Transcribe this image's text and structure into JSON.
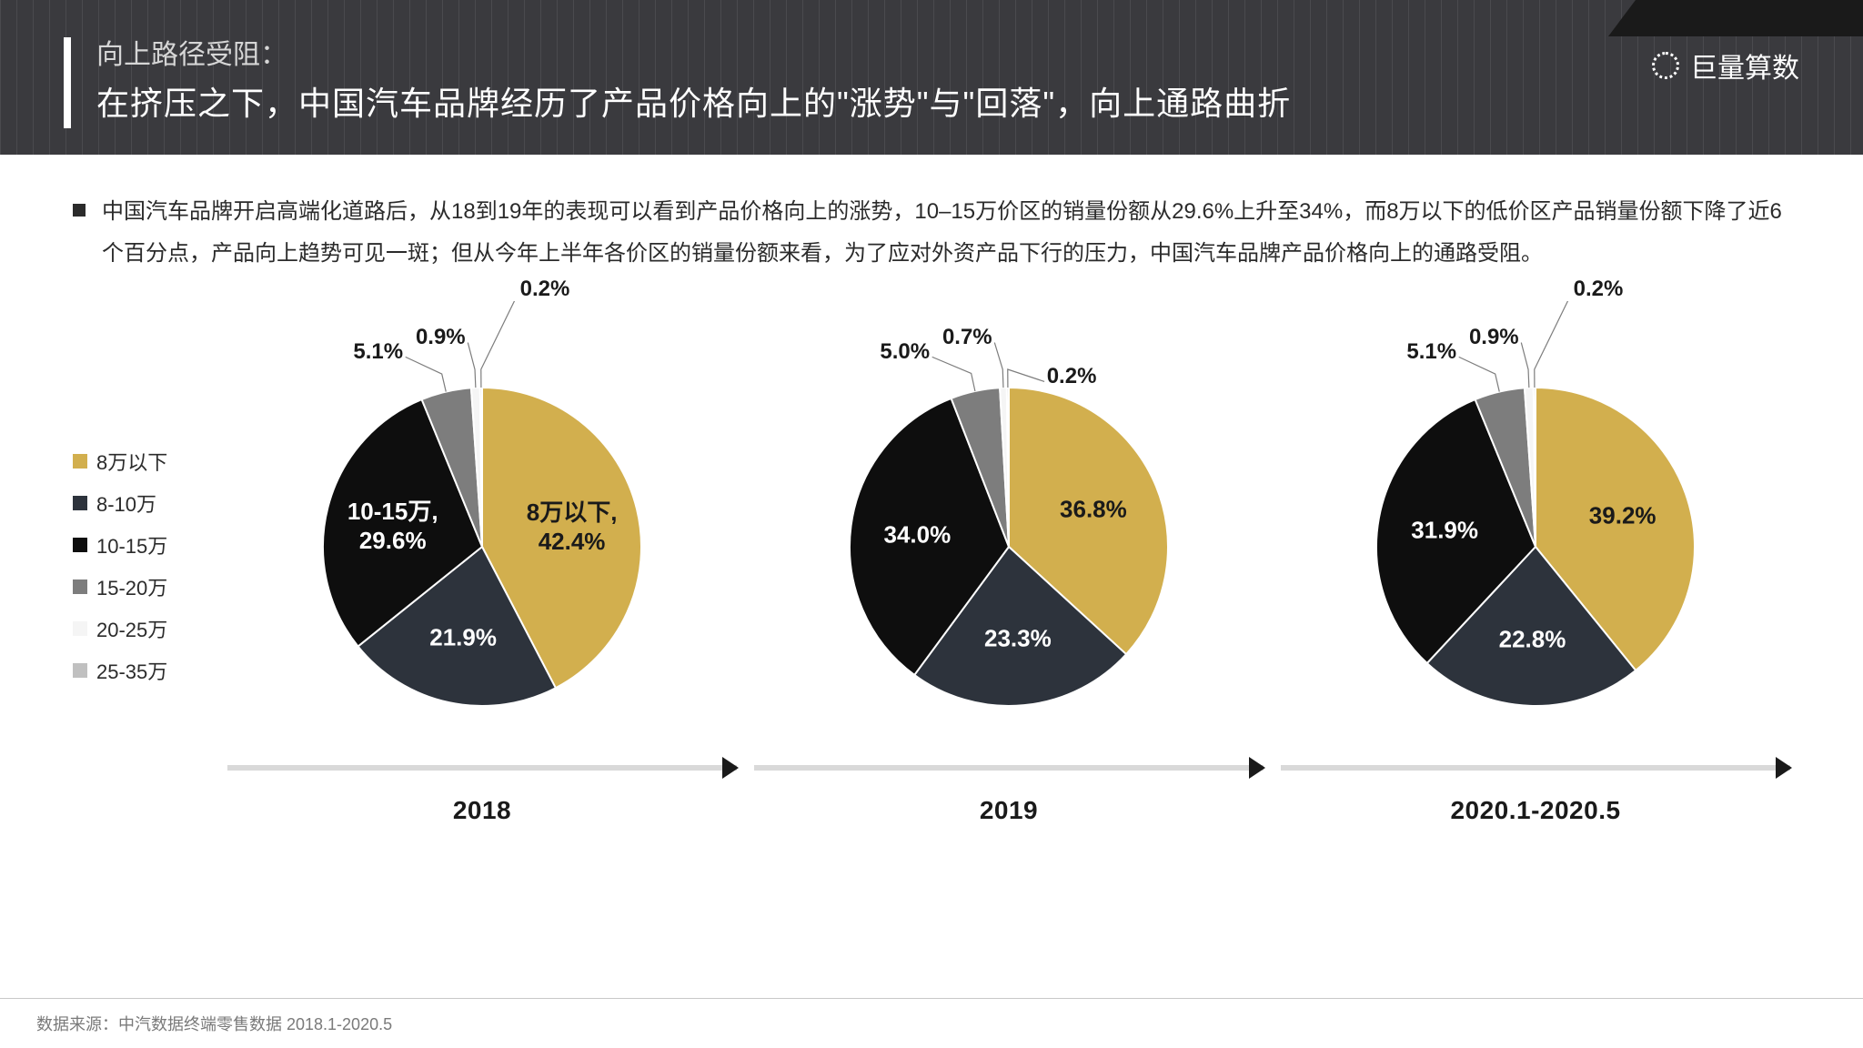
{
  "header": {
    "subtitle": "向上路径受阻：",
    "title": "在挤压之下，中国汽车品牌经历了产品价格向上的\"涨势\"与\"回落\"，向上通路曲折",
    "brand": "巨量算数"
  },
  "paragraph": "中国汽车品牌开启高端化道路后，从18到19年的表现可以看到产品价格向上的涨势，10–15万价区的销量份额从29.6%上升至34%，而8万以下的低价区产品销量份额下降了近6个百分点，产品向上趋势可见一斑；但从今年上半年各价区的销量份额来看，为了应对外资产品下行的压力，中国汽车品牌产品价格向上的通路受阻。",
  "legend": [
    {
      "label": "8万以下",
      "color": "#d2af4e"
    },
    {
      "label": "8-10万",
      "color": "#2d333c"
    },
    {
      "label": "10-15万",
      "color": "#0e0e0e"
    },
    {
      "label": "15-20万",
      "color": "#7d7d7d"
    },
    {
      "label": "20-25万",
      "color": "#f5f5f5"
    },
    {
      "label": "25-35万",
      "color": "#c0c0c0"
    }
  ],
  "charts": [
    {
      "year": "2018",
      "slices": [
        {
          "value": 42.4,
          "color": "#d2af4e",
          "label_lines": [
            "8万以下,",
            "42.4%"
          ],
          "dark": false
        },
        {
          "value": 21.9,
          "color": "#2d333c",
          "label_lines": [
            "21.9%"
          ],
          "dark": true
        },
        {
          "value": 29.6,
          "color": "#0e0e0e",
          "label_lines": [
            "10-15万,",
            "29.6%"
          ],
          "dark": true
        },
        {
          "value": 5.1,
          "color": "#7d7d7d",
          "label_lines": [
            "5.1%"
          ],
          "outside": true,
          "out_angle": -22
        },
        {
          "value": 0.9,
          "color": "#f5f5f5",
          "label_lines": [
            "0.9%"
          ],
          "outside": true,
          "out_angle": -4
        },
        {
          "value": 0.2,
          "color": "#c0c0c0",
          "label_lines": [
            "0.2%"
          ],
          "outside": true,
          "out_angle": 8,
          "far": true
        }
      ]
    },
    {
      "year": "2019",
      "slices": [
        {
          "value": 36.8,
          "color": "#d2af4e",
          "label_lines": [
            "36.8%"
          ],
          "dark": false
        },
        {
          "value": 23.3,
          "color": "#2d333c",
          "label_lines": [
            "23.3%"
          ],
          "dark": true
        },
        {
          "value": 34.0,
          "color": "#0e0e0e",
          "label_lines": [
            "34.0%"
          ],
          "dark": true
        },
        {
          "value": 5.0,
          "color": "#7d7d7d",
          "label_lines": [
            "5.0%"
          ],
          "outside": true,
          "out_angle": -22
        },
        {
          "value": 0.7,
          "color": "#f5f5f5",
          "label_lines": [
            "0.7%"
          ],
          "outside": true,
          "out_angle": -4
        },
        {
          "value": 0.2,
          "color": "#c0c0c0",
          "label_lines": [
            "0.2%"
          ],
          "outside": true,
          "out_angle": 10,
          "far": false,
          "below": true
        }
      ]
    },
    {
      "year": "2020.1-2020.5",
      "slices": [
        {
          "value": 39.2,
          "color": "#d2af4e",
          "label_lines": [
            "39.2%"
          ],
          "dark": false
        },
        {
          "value": 22.8,
          "color": "#2d333c",
          "label_lines": [
            "22.8%"
          ],
          "dark": true
        },
        {
          "value": 31.9,
          "color": "#0e0e0e",
          "label_lines": [
            "31.9%"
          ],
          "dark": true
        },
        {
          "value": 5.1,
          "color": "#7d7d7d",
          "label_lines": [
            "5.1%"
          ],
          "outside": true,
          "out_angle": -22
        },
        {
          "value": 0.9,
          "color": "#f5f5f5",
          "label_lines": [
            "0.9%"
          ],
          "outside": true,
          "out_angle": -4
        },
        {
          "value": 0.2,
          "color": "#c0c0c0",
          "label_lines": [
            "0.2%"
          ],
          "outside": true,
          "out_angle": 8,
          "far": true
        }
      ]
    }
  ],
  "styling": {
    "pie_radius": 175,
    "pie_stroke": "#ffffff",
    "pie_stroke_width": 2,
    "label_fontsize": 26,
    "label_fontweight": 700,
    "leader_color": "#7d7d7d",
    "leader_width": 1.2,
    "outer_label_radius": 225,
    "far_label_radius": 280
  },
  "footer": "数据来源：中汽数据终端零售数据  2018.1-2020.5"
}
